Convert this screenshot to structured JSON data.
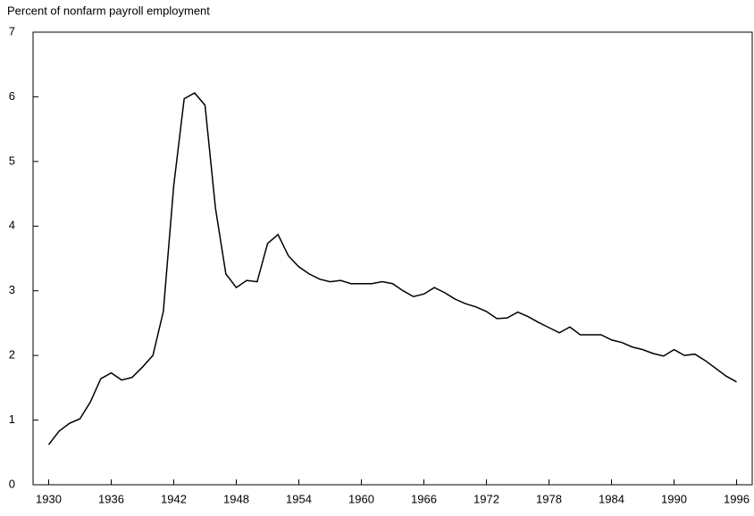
{
  "chart_data": {
    "type": "line",
    "title": "Percent of nonfarm payroll employment",
    "x": [
      1930,
      1931,
      1932,
      1933,
      1934,
      1935,
      1936,
      1937,
      1938,
      1939,
      1940,
      1941,
      1942,
      1943,
      1944,
      1945,
      1946,
      1947,
      1948,
      1949,
      1950,
      1951,
      1952,
      1953,
      1954,
      1955,
      1956,
      1957,
      1958,
      1959,
      1960,
      1961,
      1962,
      1963,
      1964,
      1965,
      1966,
      1967,
      1968,
      1969,
      1970,
      1971,
      1972,
      1973,
      1974,
      1975,
      1976,
      1977,
      1978,
      1979,
      1980,
      1981,
      1982,
      1983,
      1984,
      1985,
      1986,
      1987,
      1988,
      1989,
      1990,
      1991,
      1992,
      1993,
      1994,
      1995,
      1996
    ],
    "values": [
      0.62,
      0.83,
      0.95,
      1.02,
      1.28,
      1.64,
      1.73,
      1.62,
      1.66,
      1.82,
      2.0,
      2.68,
      4.63,
      5.97,
      6.06,
      5.87,
      4.28,
      3.26,
      3.05,
      3.16,
      3.14,
      3.73,
      3.87,
      3.54,
      3.37,
      3.26,
      3.18,
      3.14,
      3.16,
      3.11,
      3.11,
      3.11,
      3.14,
      3.11,
      3.0,
      2.91,
      2.95,
      3.05,
      2.97,
      2.87,
      2.8,
      2.75,
      2.68,
      2.57,
      2.58,
      2.67,
      2.6,
      2.51,
      2.43,
      2.35,
      2.44,
      2.32,
      2.32,
      2.32,
      2.24,
      2.2,
      2.13,
      2.09,
      2.03,
      1.99,
      2.09,
      2.0,
      2.02,
      1.92,
      1.8,
      1.68,
      1.59
    ],
    "color": "#000000",
    "xlim": [
      1928.5,
      1997.5
    ],
    "xticks": [
      1930,
      1936,
      1942,
      1948,
      1954,
      1960,
      1966,
      1972,
      1978,
      1984,
      1990,
      1996
    ],
    "ylim": [
      0,
      7
    ],
    "yticks": [
      0,
      1,
      2,
      3,
      4,
      5,
      6,
      7
    ]
  }
}
